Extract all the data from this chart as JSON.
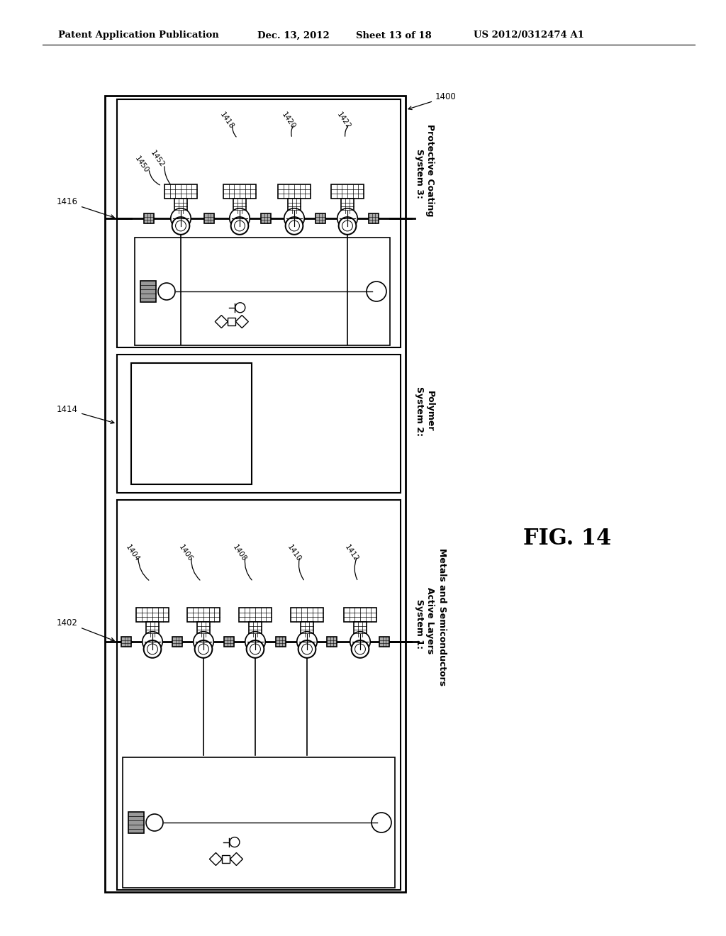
{
  "bg_color": "#ffffff",
  "header_text": "Patent Application Publication",
  "header_date": "Dec. 13, 2012",
  "header_sheet": "Sheet 13 of 18",
  "header_patent": "US 2012/0312474 A1",
  "fig_label": "FIG. 14",
  "sys3_line1": "System 3:",
  "sys3_line2": "Protective Coating",
  "sys2_line1": "System 2:",
  "sys2_line2": "Polymer",
  "sys1_line1": "System 1:",
  "sys1_line2": "Active Layers",
  "sys1_line3": "Metals and Semiconductors",
  "ref_1400": "1400",
  "ref_1402": "1402",
  "ref_1404": "1404",
  "ref_1406": "1406",
  "ref_1408": "1408",
  "ref_1410": "1410",
  "ref_1412": "1412",
  "ref_1414": "1414",
  "ref_1416": "1416",
  "ref_1418": "1418",
  "ref_1420": "1420",
  "ref_1422": "1422",
  "ref_1450": "1450",
  "ref_1452": "1452"
}
